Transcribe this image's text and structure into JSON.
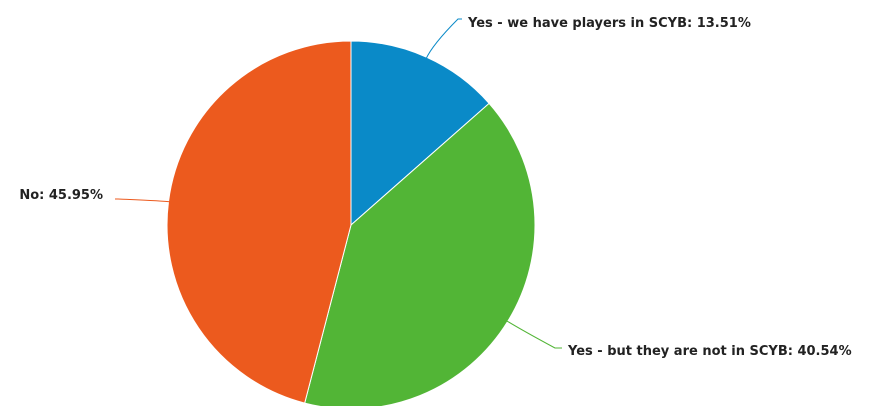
{
  "chart_data": {
    "type": "pie",
    "title": "",
    "slices": [
      {
        "label": "Yes - we have players in SCYB: 13.51%",
        "category": "Yes - we have players in SCYB",
        "value": 13.51,
        "color": "#0a8ac8"
      },
      {
        "label": "Yes - but they are not in SCYB: 40.54%",
        "category": "Yes - but they are not in SCYB",
        "value": 40.54,
        "color": "#52b536"
      },
      {
        "label": "No: 45.95%",
        "category": "No",
        "value": 45.95,
        "color": "#ec5a1e"
      }
    ],
    "start_angle": "12 o'clock",
    "direction": "clockwise",
    "legend": "none"
  }
}
